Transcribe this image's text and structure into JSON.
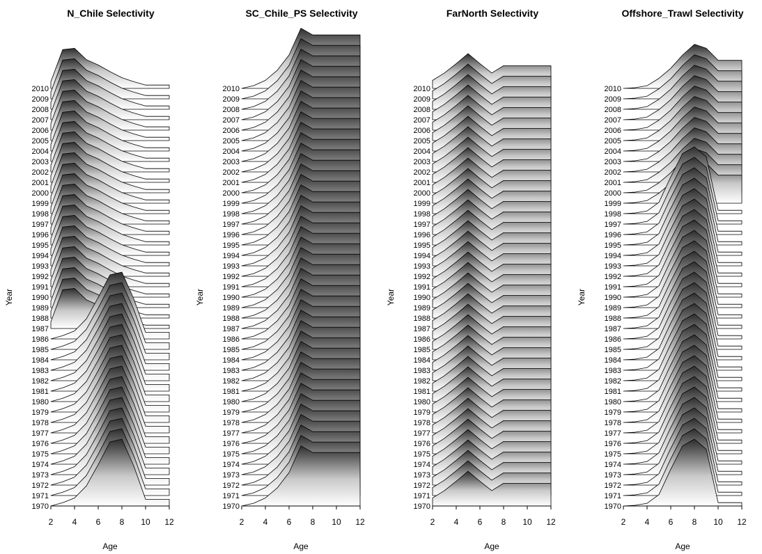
{
  "chart_data": [
    {
      "type": "ridgeline",
      "title": "N_Chile Selectivity",
      "xlabel": "Age",
      "ylabel": "Year",
      "ages": [
        2,
        3,
        4,
        5,
        6,
        7,
        8,
        9,
        10,
        11,
        12
      ],
      "x_ticks": [
        2,
        4,
        6,
        8,
        10,
        12
      ],
      "years": [
        1970,
        2010
      ],
      "regimes": [
        {
          "years": [
            1970,
            1986
          ],
          "selectivity": [
            0.0,
            0.05,
            0.12,
            0.3,
            0.62,
            0.96,
            1.0,
            0.6,
            0.1,
            0.1,
            0.1
          ]
        },
        {
          "years": [
            1987,
            2010
          ],
          "selectivity": [
            0.1,
            0.58,
            0.6,
            0.43,
            0.35,
            0.25,
            0.16,
            0.1,
            0.05,
            0.05,
            0.05
          ]
        }
      ]
    },
    {
      "type": "ridgeline",
      "title": "SC_Chile_PS Selectivity",
      "xlabel": "Age",
      "ylabel": "Year",
      "ages": [
        2,
        3,
        4,
        5,
        6,
        7,
        8,
        9,
        10,
        11,
        12
      ],
      "x_ticks": [
        2,
        4,
        6,
        8,
        10,
        12
      ],
      "years": [
        1970,
        2010
      ],
      "regimes": [
        {
          "years": [
            1970,
            2010
          ],
          "selectivity": [
            0.0,
            0.04,
            0.12,
            0.27,
            0.5,
            0.9,
            0.8,
            0.8,
            0.8,
            0.8,
            0.8
          ]
        }
      ]
    },
    {
      "type": "ridgeline",
      "title": "FarNorth Selectivity",
      "xlabel": "Age",
      "ylabel": "Year",
      "ages": [
        2,
        3,
        4,
        5,
        6,
        7,
        8,
        9,
        10,
        11,
        12
      ],
      "x_ticks": [
        2,
        4,
        6,
        8,
        10,
        12
      ],
      "years": [
        1970,
        2010
      ],
      "regimes": [
        {
          "years": [
            1970,
            2010
          ],
          "selectivity": [
            0.12,
            0.23,
            0.37,
            0.52,
            0.37,
            0.23,
            0.34,
            0.34,
            0.34,
            0.34,
            0.34
          ]
        }
      ]
    },
    {
      "type": "ridgeline",
      "title": "Offshore_Trawl Selectivity",
      "xlabel": "Age",
      "ylabel": "Year",
      "ages": [
        2,
        3,
        4,
        5,
        6,
        7,
        8,
        9,
        10,
        11,
        12
      ],
      "x_ticks": [
        2,
        4,
        6,
        8,
        10,
        12
      ],
      "years": [
        1970,
        2010
      ],
      "regimes": [
        {
          "years": [
            1970,
            1998
          ],
          "selectivity": [
            0.0,
            0.01,
            0.04,
            0.17,
            0.55,
            0.9,
            1.0,
            0.85,
            0.05,
            0.05,
            0.05
          ]
        },
        {
          "years": [
            1999,
            2010
          ],
          "selectivity": [
            0.0,
            0.01,
            0.04,
            0.15,
            0.3,
            0.5,
            0.66,
            0.6,
            0.42,
            0.42,
            0.42
          ]
        }
      ]
    }
  ]
}
